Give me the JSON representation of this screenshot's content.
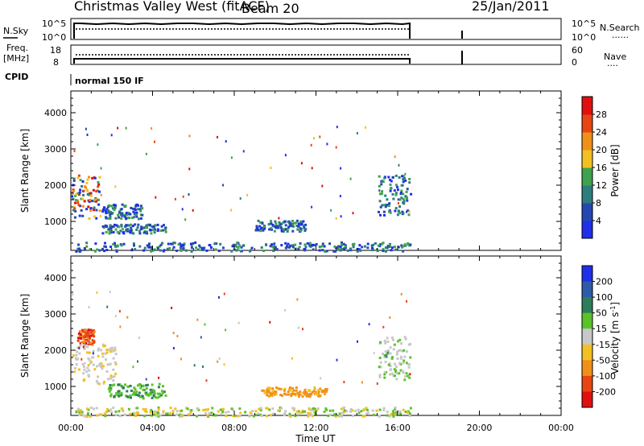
{
  "header": {
    "title": "Christmas Valley West (fitACF)",
    "beam": "Beam 20",
    "date": "25/Jan/2011"
  },
  "top_panels": {
    "nsky": {
      "left_label": "N.Sky",
      "left_top_tick": "10^5",
      "left_bottom_tick": "10^0",
      "right_top_tick": "10^5",
      "right_bottom_tick": "10^0",
      "right_label": "N.Search",
      "right_legend": "......"
    },
    "freq": {
      "left_label_1": "Freq.",
      "left_label_2": "[MHz]",
      "left_top_tick": "18",
      "left_bottom_tick": "8",
      "right_top_tick": "60",
      "right_bottom_tick": "0",
      "right_label": "Nave",
      "right_legend": "...."
    },
    "cpid": {
      "label": "CPID",
      "mode": "normal 150 IF"
    }
  },
  "chart_data": [
    {
      "type": "heatmap",
      "name": "power",
      "ylabel": "Slant Range [km]",
      "ylim": [
        200,
        4600
      ],
      "yticks": [
        "1000",
        "2000",
        "3000",
        "4000"
      ],
      "xlim": [
        0,
        24
      ],
      "colorbar_label": "Power [dB]",
      "colorbar_ticks": [
        "4",
        "8",
        "12",
        "16",
        "20",
        "24",
        "28"
      ],
      "colorbar_colors": [
        "#1f2fe8",
        "#2548b0",
        "#2e7d7d",
        "#3fa34d",
        "#f2c022",
        "#f0901a",
        "#e84514",
        "#e01010"
      ],
      "features": [
        {
          "desc": "near-range ground scatter",
          "t_start": 0.2,
          "t_end": 16.6,
          "r_start": 200,
          "r_end": 450
        },
        {
          "desc": "early strong echo",
          "t_start": 0.0,
          "t_end": 1.4,
          "r_start": 1100,
          "r_end": 2300
        },
        {
          "desc": "descending band",
          "t_start": 1.5,
          "t_end": 3.5,
          "r_start": 1100,
          "r_end": 1500
        },
        {
          "desc": "band around 800 km",
          "t_start": 1.5,
          "t_end": 4.6,
          "r_start": 700,
          "r_end": 950
        },
        {
          "desc": "midday patch",
          "t_start": 9.0,
          "t_end": 11.5,
          "r_start": 750,
          "r_end": 1050
        },
        {
          "desc": "late echo",
          "t_start": 15.0,
          "t_end": 16.6,
          "r_start": 1200,
          "r_end": 2300
        }
      ]
    },
    {
      "type": "heatmap",
      "name": "velocity",
      "ylabel": "Slant Range [km]",
      "ylim": [
        200,
        4600
      ],
      "yticks": [
        "1000",
        "2000",
        "3000",
        "4000"
      ],
      "xlim": [
        0,
        24
      ],
      "xticks": [
        "00:00",
        "04:00",
        "08:00",
        "12:00",
        "16:00",
        "20:00",
        "00:00"
      ],
      "xlabel": "Time UT",
      "colorbar_label": "Velocity [m s^-1]",
      "colorbar_ticks": [
        "200",
        "100",
        "50",
        "15",
        "-15",
        "-50",
        "-100",
        "-200"
      ],
      "colorbar_colors": [
        "#1f2fe8",
        "#2e5aa8",
        "#2e7d5a",
        "#5cc22a",
        "#c8c8c8",
        "#f2c022",
        "#f0901a",
        "#e84514",
        "#e01010"
      ],
      "features": [
        {
          "desc": "ground scatter (grey)",
          "t_start": 0.0,
          "t_end": 2.2,
          "r_start": 1100,
          "r_end": 2200
        },
        {
          "desc": "red/orange patch",
          "t_start": 0.3,
          "t_end": 1.1,
          "r_start": 2200,
          "r_end": 2600
        },
        {
          "desc": "green band",
          "t_start": 1.8,
          "t_end": 4.6,
          "r_start": 700,
          "r_end": 1100
        },
        {
          "desc": "orange midday patch",
          "t_start": 9.3,
          "t_end": 12.5,
          "r_start": 750,
          "r_end": 1000
        },
        {
          "desc": "late grey/green echo",
          "t_start": 15.0,
          "t_end": 16.6,
          "r_start": 1200,
          "r_end": 2400
        },
        {
          "desc": "near-range mixed",
          "t_start": 0.2,
          "t_end": 16.6,
          "r_start": 200,
          "r_end": 450
        }
      ]
    }
  ]
}
